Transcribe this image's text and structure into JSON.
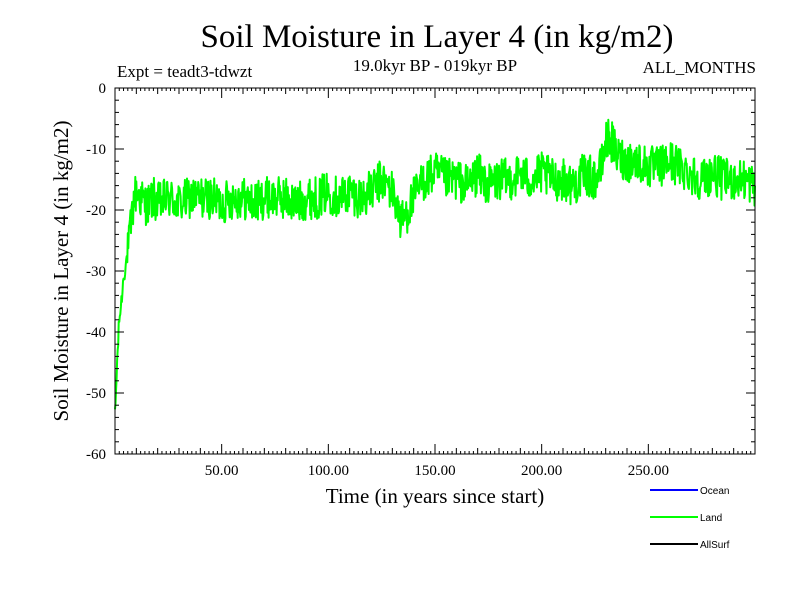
{
  "chart_data": {
    "type": "line",
    "title": "Soil Moisture in Layer 4 (in kg/m2)",
    "experiment": "Expt = teadt3-tdwzt",
    "period": "19.0kyr BP - 019kyr BP",
    "months": "ALL_MONTHS",
    "xlabel": "Time (in years since start)",
    "ylabel": "Soil Moisture in Layer 4 (in kg/m2)",
    "xlim": [
      0,
      300
    ],
    "ylim": [
      -60,
      0
    ],
    "x_ticks": [
      50,
      100,
      150,
      200,
      250
    ],
    "x_tick_labels": [
      "50.00",
      "100.00",
      "150.00",
      "200.00",
      "250.00"
    ],
    "y_ticks": [
      0,
      -10,
      -20,
      -30,
      -40,
      -50,
      -60
    ],
    "y_tick_labels": [
      "0",
      "-10",
      "-20",
      "-30",
      "-40",
      "-50",
      "-60"
    ],
    "legend": [
      {
        "name": "Ocean",
        "color": "#0000ff"
      },
      {
        "name": "Land",
        "color": "#00ff00"
      },
      {
        "name": "AllSurf",
        "color": "#000000"
      }
    ],
    "series": [
      {
        "name": "Land",
        "color": "#00ff00",
        "x": [
          0,
          1,
          2,
          3,
          4,
          5,
          6,
          7,
          8,
          9,
          10,
          12,
          14,
          16,
          18,
          20,
          25,
          30,
          35,
          40,
          45,
          50,
          55,
          60,
          65,
          70,
          75,
          80,
          85,
          90,
          95,
          100,
          105,
          110,
          115,
          120,
          125,
          130,
          132,
          134,
          136,
          140,
          145,
          150,
          155,
          160,
          165,
          170,
          175,
          180,
          185,
          190,
          195,
          200,
          205,
          210,
          215,
          220,
          225,
          228,
          230,
          232,
          235,
          240,
          245,
          250,
          255,
          260,
          265,
          270,
          275,
          280,
          285,
          290,
          295,
          300
        ],
        "values": [
          -54,
          -45,
          -38,
          -35,
          -31,
          -29,
          -27,
          -24,
          -21,
          -18,
          -17,
          -18,
          -19,
          -19,
          -18,
          -19,
          -18,
          -19,
          -18,
          -18,
          -18,
          -19,
          -18,
          -18,
          -19,
          -18,
          -18,
          -18,
          -19,
          -18,
          -18,
          -17,
          -18,
          -17,
          -18,
          -17,
          -15,
          -17,
          -19,
          -22,
          -21,
          -18,
          -15,
          -14,
          -15,
          -15,
          -16,
          -14,
          -16,
          -15,
          -15,
          -14,
          -15,
          -14,
          -15,
          -15,
          -16,
          -14,
          -15,
          -13,
          -9,
          -8,
          -11,
          -12,
          -12,
          -13,
          -13,
          -12,
          -13,
          -14,
          -15,
          -14,
          -15,
          -15,
          -15,
          -16
        ]
      }
    ]
  }
}
